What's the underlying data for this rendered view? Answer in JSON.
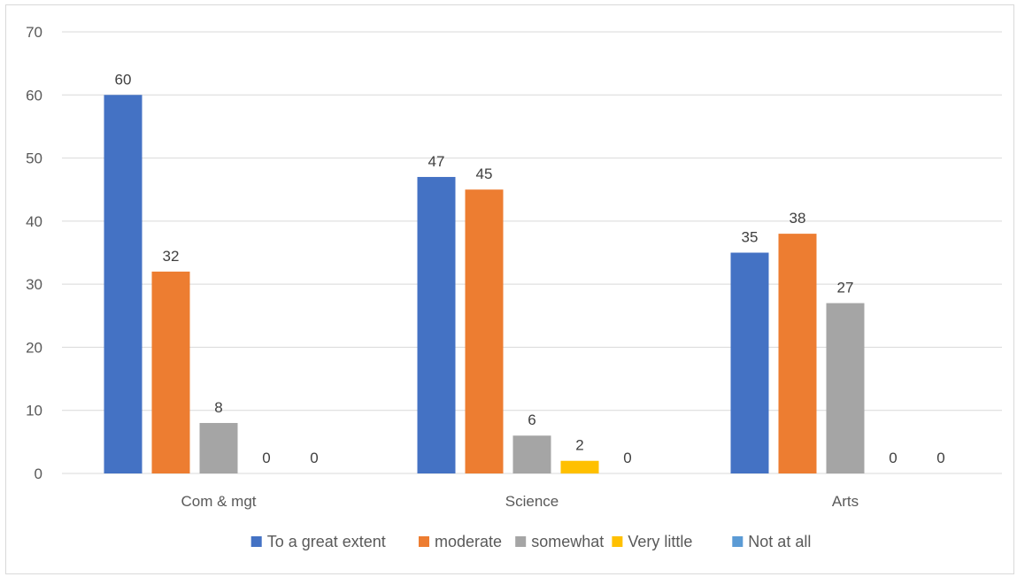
{
  "chart_data": {
    "type": "bar",
    "categories": [
      "Com & mgt",
      "Science",
      "Arts"
    ],
    "series": [
      {
        "name": "To a great extent",
        "color": "#4472c4",
        "values": [
          60,
          47,
          35
        ]
      },
      {
        "name": "moderate",
        "color": "#ed7d31",
        "values": [
          32,
          45,
          38
        ]
      },
      {
        "name": "somewhat",
        "color": "#a5a5a5",
        "values": [
          8,
          6,
          27
        ]
      },
      {
        "name": "Very little",
        "color": "#ffc000",
        "values": [
          0,
          2,
          0
        ]
      },
      {
        "name": "Not at all",
        "color": "#5b9bd5",
        "values": [
          0,
          0,
          0
        ]
      }
    ],
    "ylim": [
      0,
      70
    ],
    "yticks": [
      0,
      10,
      20,
      30,
      40,
      50,
      60,
      70
    ],
    "grid": true,
    "legend": "bottom",
    "data_labels": true
  }
}
